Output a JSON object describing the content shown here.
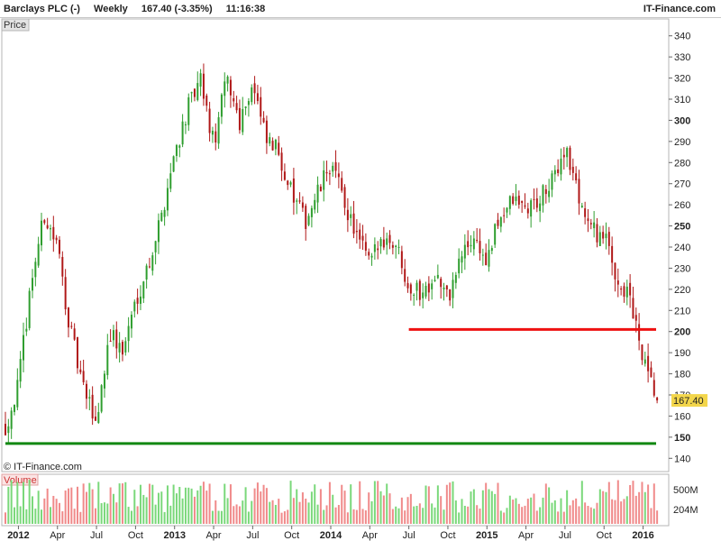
{
  "header": {
    "instrument": "Barclays PLC (-)",
    "interval": "Weekly",
    "last": "167.40 (-3.35%)",
    "time": "11:16:38",
    "brand": "IT-Finance.com"
  },
  "panels": {
    "price_label": "Price",
    "volume_label": "Volume",
    "watermark": "© IT-Finance.com"
  },
  "colors": {
    "up": "#2f9e2f",
    "down": "#b01818",
    "support_high": "#ee1111",
    "support_low": "#118811",
    "volume_up": "#7ad87a",
    "volume_down": "#f08a8a",
    "last_badge": "#f3d64b"
  },
  "chart_data": {
    "type": "candlestick",
    "title": "Barclays PLC (-)",
    "price_axis": {
      "ylim": [
        135,
        345
      ],
      "ticks": [
        140,
        150,
        160,
        170,
        180,
        190,
        200,
        210,
        220,
        230,
        240,
        250,
        260,
        270,
        280,
        290,
        300,
        310,
        320,
        330,
        340
      ],
      "major_ticks": [
        150,
        200,
        250,
        300
      ]
    },
    "time_axis": {
      "start": "2011-12",
      "end": "2016-02",
      "labels": [
        {
          "label": "2012",
          "date": "2012-01",
          "major": true
        },
        {
          "label": "Apr",
          "date": "2012-04"
        },
        {
          "label": "Jul",
          "date": "2012-07"
        },
        {
          "label": "Oct",
          "date": "2012-10"
        },
        {
          "label": "2013",
          "date": "2013-01",
          "major": true
        },
        {
          "label": "Apr",
          "date": "2013-04"
        },
        {
          "label": "Jul",
          "date": "2013-07"
        },
        {
          "label": "Oct",
          "date": "2013-10"
        },
        {
          "label": "2014",
          "date": "2014-01",
          "major": true
        },
        {
          "label": "Apr",
          "date": "2014-04"
        },
        {
          "label": "Jul",
          "date": "2014-07"
        },
        {
          "label": "Oct",
          "date": "2014-10"
        },
        {
          "label": "2015",
          "date": "2015-01",
          "major": true
        },
        {
          "label": "Apr",
          "date": "2015-04"
        },
        {
          "label": "Jul",
          "date": "2015-07"
        },
        {
          "label": "Oct",
          "date": "2015-10"
        },
        {
          "label": "2016",
          "date": "2016-01",
          "major": true
        }
      ]
    },
    "close_anchors": [
      [
        "2011-12",
        155
      ],
      [
        "2012-01",
        175
      ],
      [
        "2012-02",
        225
      ],
      [
        "2012-03",
        255
      ],
      [
        "2012-04",
        240
      ],
      [
        "2012-05",
        200
      ],
      [
        "2012-06",
        172
      ],
      [
        "2012-07",
        157
      ],
      [
        "2012-08",
        200
      ],
      [
        "2012-09",
        190
      ],
      [
        "2012-10",
        215
      ],
      [
        "2012-11",
        232
      ],
      [
        "2012-12",
        255
      ],
      [
        "2013-01",
        285
      ],
      [
        "2013-02",
        305
      ],
      [
        "2013-03",
        318
      ],
      [
        "2013-04",
        288
      ],
      [
        "2013-05",
        320
      ],
      [
        "2013-06",
        300
      ],
      [
        "2013-07",
        318
      ],
      [
        "2013-08",
        290
      ],
      [
        "2013-09",
        285
      ],
      [
        "2013-10",
        265
      ],
      [
        "2013-11",
        252
      ],
      [
        "2013-12",
        265
      ],
      [
        "2014-01",
        280
      ],
      [
        "2014-02",
        262
      ],
      [
        "2014-03",
        245
      ],
      [
        "2014-04",
        232
      ],
      [
        "2014-05",
        245
      ],
      [
        "2014-06",
        242
      ],
      [
        "2014-07",
        222
      ],
      [
        "2014-08",
        218
      ],
      [
        "2014-09",
        228
      ],
      [
        "2014-10",
        215
      ],
      [
        "2014-11",
        235
      ],
      [
        "2014-12",
        245
      ],
      [
        "2015-01",
        232
      ],
      [
        "2015-02",
        255
      ],
      [
        "2015-03",
        262
      ],
      [
        "2015-04",
        258
      ],
      [
        "2015-05",
        262
      ],
      [
        "2015-06",
        270
      ],
      [
        "2015-07",
        288
      ],
      [
        "2015-08",
        265
      ],
      [
        "2015-09",
        248
      ],
      [
        "2015-10",
        245
      ],
      [
        "2015-11",
        225
      ],
      [
        "2015-12",
        215
      ],
      [
        "2016-01",
        185
      ],
      [
        "2016-02",
        167.4
      ]
    ],
    "last_value": "167.40",
    "reference_lines": [
      {
        "value": 201,
        "from": "2014-07",
        "to": "2016-02",
        "color": "support_high"
      },
      {
        "value": 147,
        "from": "2011-12",
        "to": "2016-02",
        "color": "support_low"
      }
    ],
    "volume_axis": {
      "ticks": [
        "500M",
        "204M"
      ]
    },
    "grid": false,
    "legend": "none"
  }
}
